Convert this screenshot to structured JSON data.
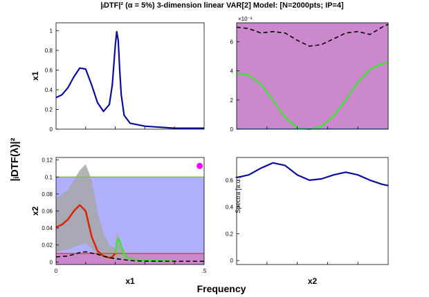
{
  "figure": {
    "title": "|ᵢDTF|² (α = 5%) 3-dimension linear VAR[2] Model: [N=2000pts; IP=4]",
    "ylabel": "|ᵢDTF(λ)|²",
    "xlabel": "Frequency",
    "colors": {
      "spectrum": "#0a0a9e",
      "threshold_region_magenta": "#cc88cc",
      "threshold_region_blue": "#b0b0ff",
      "significant": "#44e03a",
      "nonsignificant": "#dd2200",
      "ci_band": "#a8a8a8",
      "coherence": "#000000",
      "alpha_line": "#80c050",
      "marker": "#ff00ff"
    }
  },
  "chart_data": [
    {
      "panel": "top-left",
      "type": "line",
      "ylabel": "x1",
      "yticks": [
        "0",
        "0.2",
        "0.4",
        "0.6",
        "0.8",
        "1"
      ],
      "ylim": [
        0,
        1.08
      ],
      "xlim": [
        0,
        0.5
      ],
      "series": [
        {
          "role": "spectrum",
          "x": [
            0,
            0.02,
            0.04,
            0.06,
            0.08,
            0.1,
            0.12,
            0.14,
            0.16,
            0.18,
            0.19,
            0.2,
            0.205,
            0.21,
            0.215,
            0.22,
            0.23,
            0.25,
            0.3,
            0.4,
            0.5
          ],
          "y": [
            0.32,
            0.35,
            0.42,
            0.53,
            0.62,
            0.61,
            0.45,
            0.27,
            0.18,
            0.25,
            0.45,
            0.85,
            0.99,
            0.9,
            0.6,
            0.35,
            0.14,
            0.06,
            0.03,
            0.01,
            0.01
          ]
        }
      ]
    },
    {
      "panel": "top-right",
      "type": "line",
      "scale_label": "×10⁻³",
      "yticks": [
        "0",
        "2",
        "4",
        "6"
      ],
      "ylim": [
        0,
        7.3
      ],
      "xlim": [
        0,
        0.5
      ],
      "series": [
        {
          "role": "coherence",
          "x": [
            0,
            0.04,
            0.08,
            0.12,
            0.16,
            0.2,
            0.24,
            0.28,
            0.32,
            0.36,
            0.4,
            0.44,
            0.48,
            0.5
          ],
          "y": [
            7.0,
            6.9,
            6.6,
            6.7,
            6.6,
            6.1,
            5.7,
            5.8,
            6.2,
            6.6,
            6.7,
            6.5,
            7.0,
            7.2
          ]
        },
        {
          "role": "significant",
          "x": [
            0,
            0.04,
            0.08,
            0.12,
            0.16,
            0.2,
            0.24,
            0.28,
            0.32,
            0.36,
            0.4,
            0.44,
            0.48,
            0.5
          ],
          "y": [
            3.85,
            3.7,
            3.1,
            2.0,
            0.8,
            0.12,
            0.0,
            0.2,
            0.9,
            2.0,
            3.2,
            4.1,
            4.5,
            4.55
          ]
        },
        {
          "role": "spectrum",
          "x": [
            0,
            0.5
          ],
          "y": [
            0.02,
            0.02
          ]
        }
      ]
    },
    {
      "panel": "bottom-left",
      "type": "line",
      "ylabel": "x2",
      "xlabel": "x1",
      "xticks": [
        "0",
        ".5"
      ],
      "yticks": [
        "0",
        "0.02",
        "0.04",
        "0.06",
        "0.08",
        "0.1",
        "0.12"
      ],
      "ylim": [
        -0.003,
        0.123
      ],
      "xlim": [
        0,
        0.5
      ],
      "series": [
        {
          "role": "nonsignificant",
          "x": [
            0,
            0.02,
            0.04,
            0.06,
            0.08,
            0.1,
            0.12,
            0.14,
            0.16,
            0.18,
            0.19,
            0.2
          ],
          "y": [
            0.041,
            0.044,
            0.05,
            0.06,
            0.067,
            0.06,
            0.03,
            0.013,
            0.007,
            0.005,
            0.006,
            0.01
          ]
        },
        {
          "role": "significant",
          "x": [
            0.2,
            0.205,
            0.21,
            0.215,
            0.22,
            0.23,
            0.24,
            0.26,
            0.3,
            0.35,
            0.4
          ],
          "y": [
            0.01,
            0.022,
            0.028,
            0.025,
            0.018,
            0.009,
            0.005,
            0.003,
            0.002,
            0.0015,
            0.001
          ]
        },
        {
          "role": "coherence",
          "x": [
            0,
            0.04,
            0.08,
            0.1,
            0.14,
            0.18,
            0.22,
            0.26,
            0.3,
            0.36,
            0.42,
            0.5
          ],
          "y": [
            0.006,
            0.007,
            0.011,
            0.012,
            0.009,
            0.005,
            0.003,
            0.0015,
            0.001,
            0.0008,
            0.0008,
            0.0008
          ]
        },
        {
          "role": "ci_band_upper",
          "x": [
            0,
            0.04,
            0.08,
            0.1,
            0.12,
            0.14,
            0.16,
            0.18,
            0.2,
            0.205,
            0.21,
            0.22,
            0.24
          ],
          "y": [
            0.075,
            0.085,
            0.108,
            0.115,
            0.097,
            0.06,
            0.034,
            0.02,
            0.016,
            0.035,
            0.03,
            0.02,
            0.008
          ]
        },
        {
          "role": "ci_band_lower",
          "x": [
            0,
            0.04,
            0.08,
            0.1,
            0.12,
            0.14,
            0.16,
            0.18,
            0.2,
            0.205,
            0.21,
            0.22,
            0.24
          ],
          "y": [
            0.012,
            0.015,
            0.02,
            0.022,
            0.016,
            0.008,
            0.004,
            0.002,
            0.003,
            0.006,
            0.005,
            0.003,
            0.001
          ]
        },
        {
          "role": "alpha_threshold",
          "y_constant": 0.1
        },
        {
          "role": "threshold_red",
          "y_constant": 0.01
        },
        {
          "role": "marker",
          "x": [
            0.485
          ],
          "y": [
            0.113
          ]
        }
      ]
    },
    {
      "panel": "bottom-right",
      "type": "line",
      "xlabel": "x2",
      "ylabel": "Spectra [a.u.]",
      "yticks": [
        "0",
        "0.2",
        "0.4",
        "0.6"
      ],
      "ylim": [
        -0.03,
        0.77
      ],
      "xlim": [
        0,
        0.5
      ],
      "series": [
        {
          "role": "spectrum",
          "x": [
            0,
            0.04,
            0.08,
            0.12,
            0.16,
            0.2,
            0.24,
            0.28,
            0.32,
            0.36,
            0.4,
            0.44,
            0.48,
            0.5
          ],
          "y": [
            0.62,
            0.64,
            0.69,
            0.73,
            0.71,
            0.64,
            0.6,
            0.61,
            0.64,
            0.66,
            0.64,
            0.6,
            0.57,
            0.56
          ]
        }
      ]
    }
  ]
}
